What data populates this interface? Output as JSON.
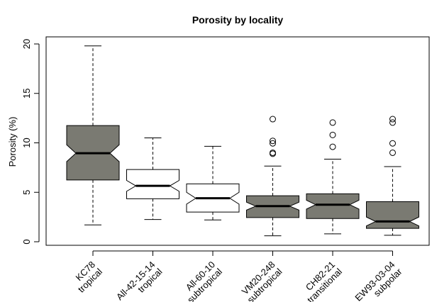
{
  "chart_data": {
    "type": "boxplot",
    "title": "Porosity by locality",
    "xlabel": "",
    "ylabel": "Porosity (%)",
    "ylim": [
      0,
      20
    ],
    "yticks": [
      0,
      5,
      10,
      15,
      20
    ],
    "notched": true,
    "grid": false,
    "legend": "none",
    "colors": {
      "filled": "#7a7a72",
      "open": "#ffffff",
      "stroke": "#000000"
    },
    "categories": [
      {
        "name": "KC78",
        "zone": "tropical",
        "fill": "filled",
        "min": 1.7,
        "q1": 6.25,
        "median": 8.95,
        "q3": 11.75,
        "max": 19.8,
        "notch_low": 8.1,
        "notch_high": 9.8,
        "outliers": []
      },
      {
        "name": "All-42-15-14",
        "zone": "tropical",
        "fill": "open",
        "min": 2.25,
        "q1": 4.35,
        "median": 5.65,
        "q3": 7.3,
        "max": 10.5,
        "notch_low": 5.1,
        "notch_high": 6.2,
        "outliers": []
      },
      {
        "name": "All-60-10",
        "zone": "subtropical",
        "fill": "open",
        "min": 2.2,
        "q1": 3.0,
        "median": 4.4,
        "q3": 5.85,
        "max": 9.65,
        "notch_low": 3.8,
        "notch_high": 5.0,
        "outliers": []
      },
      {
        "name": "VM20-248",
        "zone": "subtropical",
        "fill": "filled",
        "min": 0.6,
        "q1": 2.45,
        "median": 3.6,
        "q3": 4.65,
        "max": 7.65,
        "notch_low": 3.2,
        "notch_high": 4.0,
        "outliers": [
          8.9,
          9.0,
          9.95,
          10.2,
          12.4
        ]
      },
      {
        "name": "CH82-21",
        "zone": "transitional",
        "fill": "filled",
        "min": 0.8,
        "q1": 2.35,
        "median": 3.75,
        "q3": 4.85,
        "max": 8.35,
        "notch_low": 3.3,
        "notch_high": 4.2,
        "outliers": [
          9.6,
          10.8,
          12.05
        ]
      },
      {
        "name": "EW93-03-04",
        "zone": "subpolar",
        "fill": "filled",
        "min": 0.65,
        "q1": 1.35,
        "median": 2.05,
        "q3": 4.05,
        "max": 7.6,
        "notch_low": 1.6,
        "notch_high": 2.5,
        "outliers": [
          9.0,
          9.95,
          12.05,
          12.4
        ]
      }
    ]
  }
}
